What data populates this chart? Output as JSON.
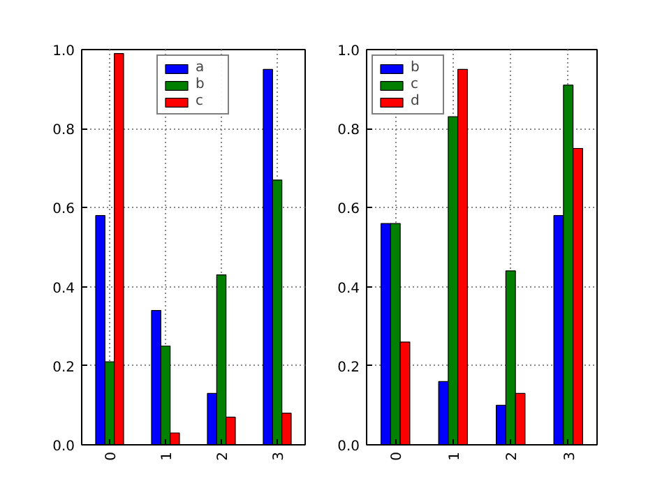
{
  "chart_data": [
    {
      "type": "bar",
      "categories": [
        "0",
        "1",
        "2",
        "3"
      ],
      "ylim": [
        0,
        1
      ],
      "yticks": [
        {
          "value": 0,
          "label": "0.0"
        },
        {
          "value": 0.2,
          "label": "0.2"
        },
        {
          "value": 0.4,
          "label": "0.4"
        },
        {
          "value": 0.6,
          "label": "0.6"
        },
        {
          "value": 0.8,
          "label": "0.8"
        },
        {
          "value": 1,
          "label": "1.0"
        }
      ],
      "grid": true,
      "legend": "top",
      "series": [
        {
          "name": "a",
          "color": "#0000ff",
          "values": [
            0.58,
            0.34,
            0.13,
            0.95
          ]
        },
        {
          "name": "b",
          "color": "#007f00",
          "values": [
            0.21,
            0.25,
            0.43,
            0.67
          ]
        },
        {
          "name": "c",
          "color": "#ff0000",
          "values": [
            0.99,
            0.03,
            0.07,
            0.08
          ]
        }
      ]
    },
    {
      "type": "bar",
      "categories": [
        "0",
        "1",
        "2",
        "3"
      ],
      "ylim": [
        0,
        1
      ],
      "yticks": [
        {
          "value": 0,
          "label": "0.0"
        },
        {
          "value": 0.2,
          "label": "0.2"
        },
        {
          "value": 0.4,
          "label": "0.4"
        },
        {
          "value": 0.6,
          "label": "0.6"
        },
        {
          "value": 0.8,
          "label": "0.8"
        },
        {
          "value": 1,
          "label": "1.0"
        }
      ],
      "grid": true,
      "legend": "top left",
      "series": [
        {
          "name": "b",
          "color": "#0000ff",
          "values": [
            0.56,
            0.16,
            0.1,
            0.58
          ]
        },
        {
          "name": "c",
          "color": "#007f00",
          "values": [
            0.56,
            0.83,
            0.44,
            0.91
          ]
        },
        {
          "name": "d",
          "color": "#ff0000",
          "values": [
            0.26,
            0.95,
            0.13,
            0.75
          ]
        }
      ]
    }
  ]
}
